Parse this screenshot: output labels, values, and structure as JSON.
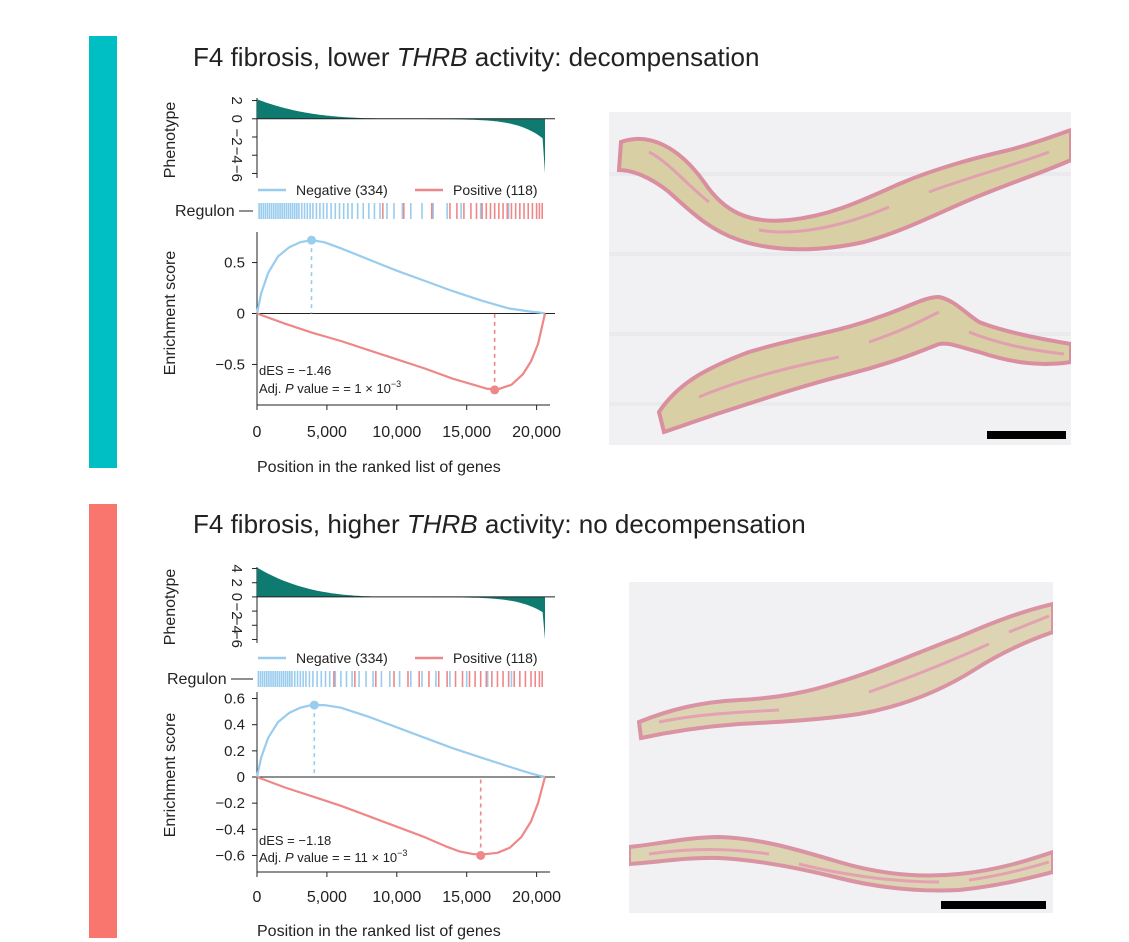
{
  "panels": [
    {
      "id": "top",
      "side_bar_color": "#00bfc4",
      "title": {
        "prefix": "F4 fibrosis, lower ",
        "gene": "THRB",
        "suffix": " activity: decompensation"
      },
      "stats": {
        "des": "dES = −1.46",
        "pval_label": "Adj. ",
        "pval_italic": "P",
        "pval_text": " value = = 1 × 10",
        "pval_exp": "−3"
      },
      "histology_scale_bar": true
    },
    {
      "id": "bottom",
      "side_bar_color": "#f8766d",
      "title": {
        "prefix": "F4 fibrosis, higher ",
        "gene": "THRB",
        "suffix": " activity: no decompensation"
      },
      "stats": {
        "des": "dES = −1.18",
        "pval_label": "Adj. ",
        "pval_italic": "P",
        "pval_text": " value = = 11 × 10",
        "pval_exp": "−3"
      },
      "histology_scale_bar": true
    }
  ],
  "chart_data": [
    {
      "type": "line",
      "panel": "top",
      "phenotype_ylabel": "Phenotype",
      "phenotype_ticks": [
        2,
        0,
        -2,
        -4,
        -6
      ],
      "phenotype_ylim": [
        -6.5,
        2.5
      ],
      "phenotype_tick_labels": [
        "2",
        "0",
        "−2",
        "−4",
        "−6"
      ],
      "regulon_label": "Regulon",
      "ylabel": "Enrichment score",
      "xlabel": "Position in the ranked list of genes",
      "xlim": [
        0,
        20600
      ],
      "ylim": [
        -0.8,
        0.8
      ],
      "x_ticks": [
        0,
        5000,
        10000,
        15000,
        20000
      ],
      "x_tick_labels": [
        "0",
        "5,000",
        "10,000",
        "15,000",
        "20,000"
      ],
      "y_ticks": [
        0.5,
        0,
        -0.5
      ],
      "y_tick_labels": [
        "0.5",
        "0",
        "−0.5"
      ],
      "legend": [
        {
          "name": "Negative (334)",
          "color": "#99ccee"
        },
        {
          "name": "Positive (118)",
          "color": "#ee8888"
        }
      ],
      "series": [
        {
          "name": "Negative (334)",
          "color": "#99ccee",
          "x": [
            0,
            300,
            800,
            1500,
            2300,
            3100,
            3900,
            4800,
            6000,
            8000,
            10000,
            12000,
            14000,
            16000,
            18000,
            19500,
            20200,
            20600
          ],
          "y": [
            0,
            0.2,
            0.4,
            0.56,
            0.65,
            0.7,
            0.72,
            0.7,
            0.64,
            0.53,
            0.42,
            0.32,
            0.22,
            0.13,
            0.05,
            0.02,
            0.01,
            0
          ]
        },
        {
          "name": "Positive (118)",
          "color": "#ee8888",
          "x": [
            0,
            2000,
            4000,
            6000,
            8000,
            10000,
            12000,
            14000,
            15500,
            16500,
            17300,
            18200,
            19000,
            19600,
            20100,
            20400,
            20600
          ],
          "y": [
            0,
            -0.1,
            -0.19,
            -0.27,
            -0.36,
            -0.45,
            -0.54,
            -0.64,
            -0.7,
            -0.74,
            -0.74,
            -0.7,
            -0.6,
            -0.47,
            -0.3,
            -0.12,
            0
          ]
        }
      ],
      "peaks": [
        {
          "series": "Negative (334)",
          "x": 3900,
          "y": 0.72
        },
        {
          "series": "Positive (118)",
          "x": 17000,
          "y": -0.75
        }
      ],
      "regulon_negative_hits": [
        150,
        300,
        450,
        600,
        750,
        900,
        1050,
        1200,
        1350,
        1500,
        1650,
        1800,
        1950,
        2100,
        2250,
        2400,
        2550,
        2700,
        2850,
        3000,
        3200,
        3400,
        3600,
        3800,
        4000,
        4250,
        4500,
        4750,
        5000,
        5300,
        5600,
        5900,
        6200,
        6500,
        6800,
        7200,
        7600,
        8000,
        8400,
        8800,
        9300,
        9800,
        10400,
        11000,
        11800,
        12600,
        13600,
        14600,
        16000,
        18000
      ],
      "regulon_positive_hits": [
        9000,
        10500,
        12500,
        13800,
        14300,
        14800,
        15300,
        15700,
        16100,
        16400,
        16700,
        17000,
        17300,
        17600,
        17900,
        18200,
        18500,
        18800,
        19100,
        19400,
        19700,
        20000,
        20200,
        20400
      ]
    },
    {
      "type": "line",
      "panel": "bottom",
      "phenotype_ylabel": "Phenotype",
      "phenotype_ticks": [
        4,
        2,
        0,
        -2,
        -4,
        -6
      ],
      "phenotype_ylim": [
        -6.5,
        4.5
      ],
      "phenotype_tick_labels": [
        "4",
        "2",
        "0",
        "−2",
        "−4",
        "−6"
      ],
      "regulon_label": "Regulon",
      "ylabel": "Enrichment score",
      "xlabel": "Position in the ranked list of genes",
      "xlim": [
        0,
        20600
      ],
      "ylim": [
        -0.65,
        0.65
      ],
      "x_ticks": [
        0,
        5000,
        10000,
        15000,
        20000
      ],
      "x_tick_labels": [
        "0",
        "5,000",
        "10,000",
        "15,000",
        "20,000"
      ],
      "y_ticks": [
        0.6,
        0.4,
        0.2,
        0,
        -0.2,
        -0.4,
        -0.6
      ],
      "y_tick_labels": [
        "0.6",
        "0.4",
        "0.2",
        "0",
        "−0.2",
        "−0.4",
        "−0.6"
      ],
      "legend": [
        {
          "name": "Negative (334)",
          "color": "#99ccee"
        },
        {
          "name": "Positive (118)",
          "color": "#ee8888"
        }
      ],
      "series": [
        {
          "name": "Negative (334)",
          "color": "#99ccee",
          "x": [
            0,
            300,
            800,
            1500,
            2300,
            3100,
            3900,
            4800,
            6000,
            8000,
            10000,
            12000,
            14000,
            16000,
            18000,
            19500,
            20200,
            20600
          ],
          "y": [
            0,
            0.15,
            0.3,
            0.42,
            0.49,
            0.53,
            0.55,
            0.55,
            0.53,
            0.46,
            0.38,
            0.3,
            0.22,
            0.15,
            0.08,
            0.03,
            0.01,
            0
          ]
        },
        {
          "name": "Positive (118)",
          "color": "#ee8888",
          "x": [
            0,
            2000,
            4000,
            6000,
            8000,
            10000,
            12000,
            13500,
            14500,
            15500,
            16300,
            17200,
            18100,
            18900,
            19600,
            20100,
            20400,
            20600
          ],
          "y": [
            0,
            -0.08,
            -0.15,
            -0.22,
            -0.3,
            -0.38,
            -0.46,
            -0.53,
            -0.57,
            -0.59,
            -0.59,
            -0.58,
            -0.54,
            -0.46,
            -0.34,
            -0.2,
            -0.08,
            0
          ]
        }
      ],
      "peaks": [
        {
          "series": "Negative (334)",
          "x": 4100,
          "y": 0.55
        },
        {
          "series": "Positive (118)",
          "x": 16000,
          "y": -0.6
        }
      ],
      "regulon_negative_hits": [
        100,
        250,
        400,
        550,
        700,
        850,
        1000,
        1150,
        1300,
        1450,
        1600,
        1750,
        1900,
        2050,
        2200,
        2350,
        2500,
        2700,
        2900,
        3100,
        3300,
        3500,
        3750,
        4000,
        4300,
        4600,
        4900,
        5200,
        5600,
        6000,
        6400,
        6800,
        7300,
        7800,
        8300,
        8900,
        9500,
        10200,
        11000,
        11800,
        12800,
        13800,
        15000,
        16500,
        18200
      ],
      "regulon_positive_hits": [
        5500,
        7000,
        8500,
        9800,
        10800,
        11600,
        12300,
        13000,
        13600,
        14200,
        14700,
        15200,
        15600,
        16000,
        16400,
        16800,
        17200,
        17600,
        18000,
        18400,
        18800,
        19200,
        19600,
        19900,
        20200,
        20400
      ]
    }
  ]
}
